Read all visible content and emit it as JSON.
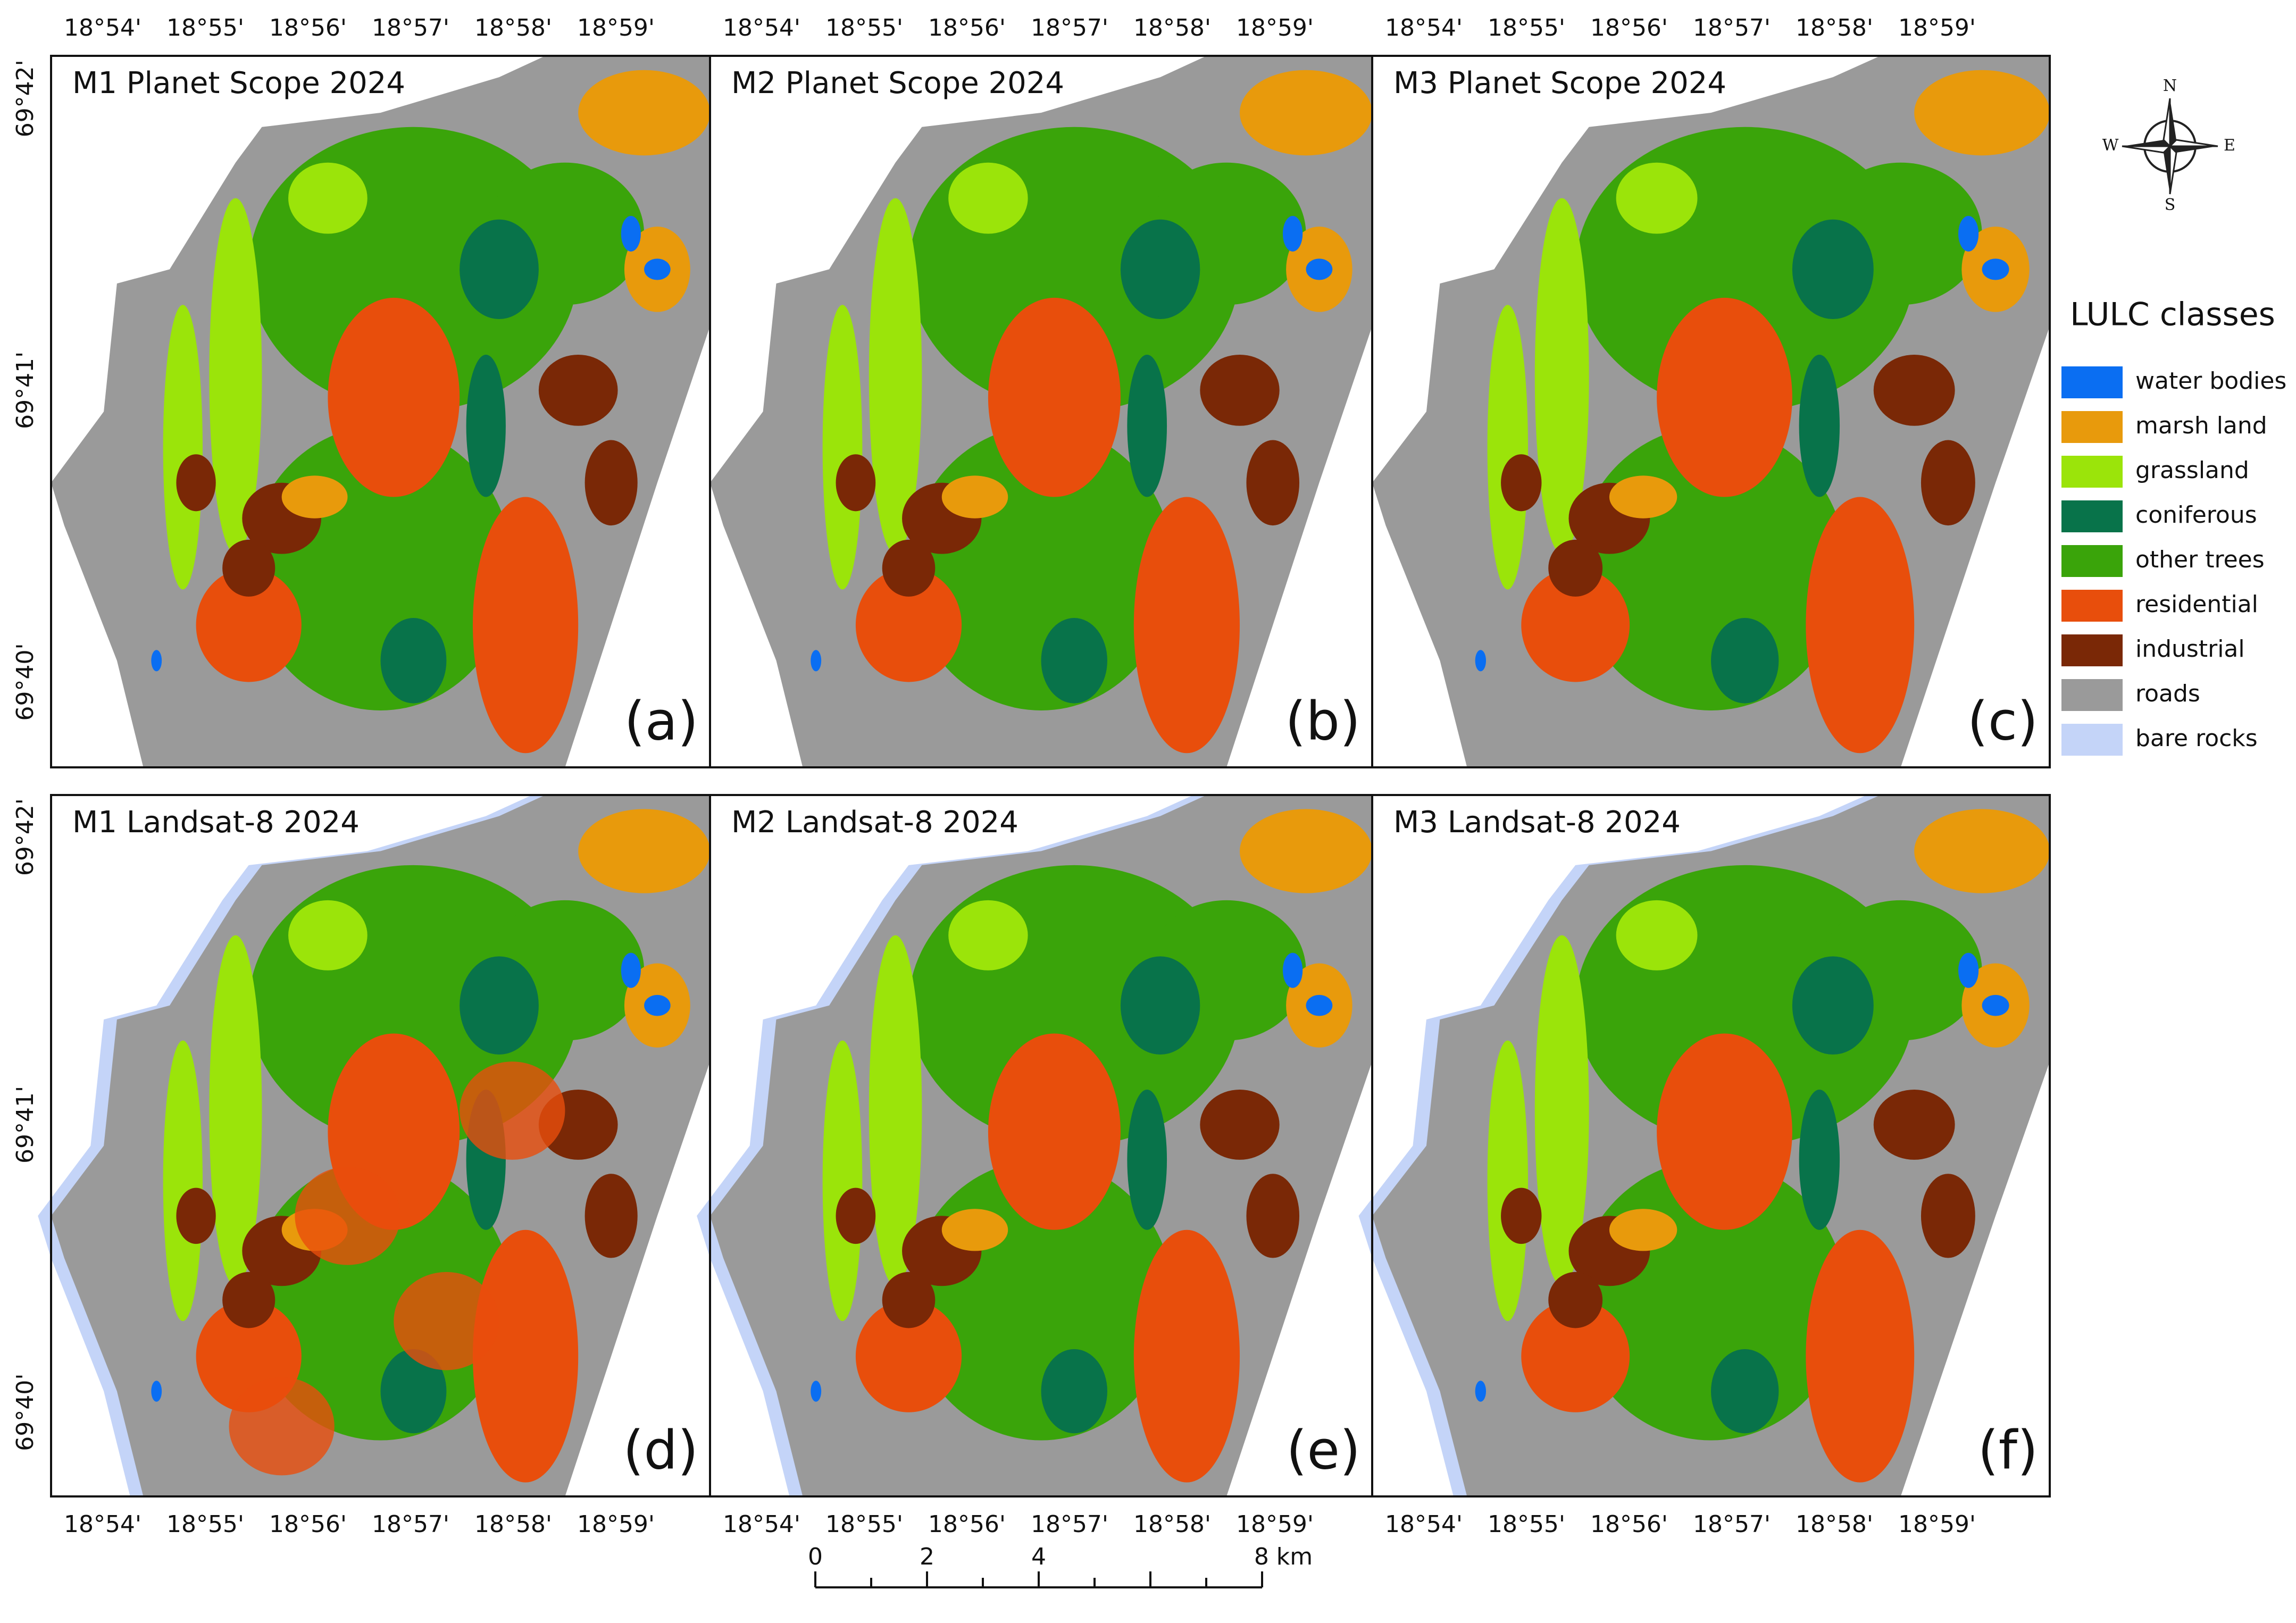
{
  "panels": [
    {
      "title": "M1 Planet Scope 2024",
      "letter": "(a)"
    },
    {
      "title": "M2 Planet Scope 2024",
      "letter": "(b)"
    },
    {
      "title": "M3 Planet Scope 2024",
      "letter": "(c)"
    },
    {
      "title": "M1 Landsat-8 2024",
      "letter": "(d)"
    },
    {
      "title": "M2 Landsat-8 2024",
      "letter": "(e)"
    },
    {
      "title": "M3 Landsat-8 2024",
      "letter": "(f)"
    }
  ],
  "longitude_labels": [
    "18°54'",
    "18°55'",
    "18°56'",
    "18°57'",
    "18°58'",
    "18°59'"
  ],
  "latitude_labels": [
    "69°42'",
    "69°41'",
    "69°40'"
  ],
  "legend": {
    "title": "LULC classes",
    "classes": [
      {
        "name": "water bodies",
        "color": "#0a6ef2"
      },
      {
        "name": "marsh land",
        "color": "#e89a0c"
      },
      {
        "name": "grassland",
        "color": "#9be40a"
      },
      {
        "name": "coniferous",
        "color": "#08734a"
      },
      {
        "name": "other trees",
        "color": "#3aa40a"
      },
      {
        "name": "residential",
        "color": "#e84e0c"
      },
      {
        "name": "industrial",
        "color": "#7a2806"
      },
      {
        "name": "roads",
        "color": "#9a9a9a"
      },
      {
        "name": "bare rocks",
        "color": "#c4d4f8"
      }
    ]
  },
  "scale_bar": {
    "labels": [
      "0",
      "2",
      "4",
      "8 km"
    ]
  },
  "compass": {
    "n": "N",
    "s": "S",
    "e": "E",
    "w": "W"
  }
}
